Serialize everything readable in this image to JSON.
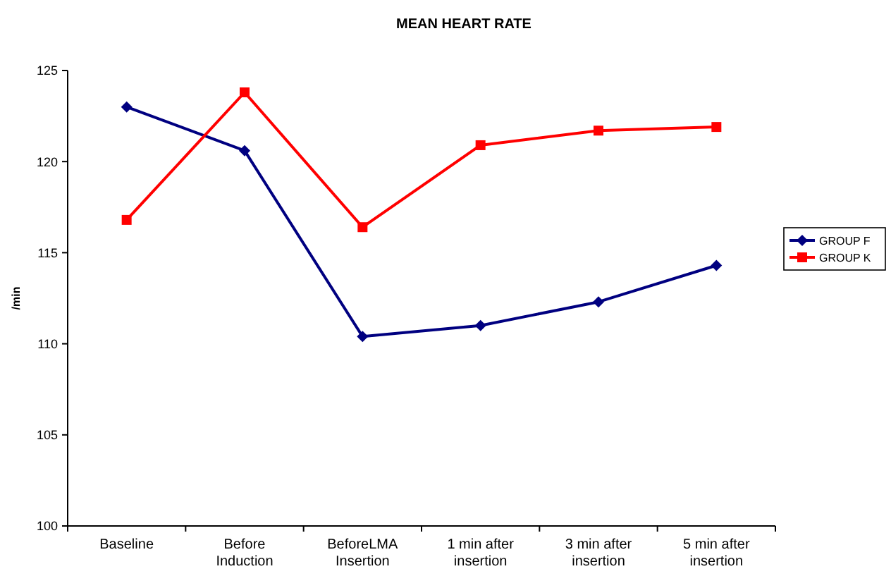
{
  "chart_data": {
    "type": "line",
    "title": "MEAN HEART RATE",
    "ylabel": "/min",
    "categories": [
      "Baseline",
      "Before Induction",
      "BeforeLMA Insertion",
      "1 min after insertion",
      "3 min after insertion",
      "5 min after insertion"
    ],
    "series": [
      {
        "name": "GROUP F",
        "color": "#000080",
        "marker": "diamond",
        "values": [
          123.0,
          120.6,
          110.4,
          111.0,
          112.3,
          114.3
        ]
      },
      {
        "name": "GROUP K",
        "color": "#ff0000",
        "marker": "square",
        "values": [
          116.8,
          123.8,
          116.4,
          120.9,
          121.7,
          121.9
        ]
      }
    ],
    "ylim": [
      100,
      125
    ],
    "yticks": [
      100,
      105,
      110,
      115,
      120,
      125
    ],
    "grid": false,
    "legend": "right",
    "line_style": "solid"
  }
}
